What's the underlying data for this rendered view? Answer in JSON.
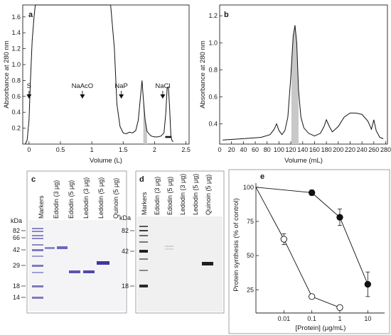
{
  "panels": {
    "a": {
      "label": "a",
      "ylabel": "Absorbance at 280 nm",
      "xlabel": "Volume (L)",
      "annotations": [
        {
          "text": "S",
          "x": 0.0
        },
        {
          "text": "NaAcO",
          "x": 0.85
        },
        {
          "text": "NaP",
          "x": 1.47
        },
        {
          "text": "NaCl",
          "x": 2.13
        }
      ]
    },
    "b": {
      "label": "b",
      "ylabel": "Absorbance at 280 nm",
      "xlabel": "Volume (mL)"
    },
    "c": {
      "label": "c",
      "unit": "kDa",
      "lanes": [
        "Markers",
        "Edodin (3 μg)",
        "Edodin (5 μg)",
        "Ledodin (3 μg)",
        "Ledodin (5 μg)",
        "Quinoin (5 μg)"
      ],
      "mw_labels": [
        "82",
        "66",
        "42",
        "29",
        "18",
        "14"
      ],
      "mw_values": [
        82,
        66,
        42,
        29,
        18,
        14
      ]
    },
    "d": {
      "label": "d",
      "unit": "kDa",
      "lanes": [
        "Markers",
        "Edodin (3 μg)",
        "Edodin (5 μg)",
        "Ledodin (3 μg)",
        "Ledodin (5 μg)",
        "Quinoin (5 μg)"
      ],
      "mw_labels": [
        "82",
        "42",
        "18"
      ],
      "mw_values": [
        82,
        42,
        18
      ]
    },
    "e": {
      "label": "e",
      "ylabel": "Protein synthesis (% of control)",
      "xlabel": "[Protein] (μg/mL)"
    }
  },
  "chart_data": [
    {
      "id": "a",
      "type": "line",
      "xlabel": "Volume (L)",
      "ylabel": "Absorbance at 280 nm",
      "xlim": [
        -0.1,
        2.55
      ],
      "ylim": [
        0,
        1.75
      ],
      "xticks": [
        0,
        0.5,
        1,
        1.5,
        2,
        2.5
      ],
      "xtick_labels": [
        "0",
        "0.5",
        "1",
        "1.5",
        "2",
        "2.5"
      ],
      "yticks": [
        0.2,
        0.4,
        0.6,
        0.8,
        1.0,
        1.2,
        1.4,
        1.6
      ],
      "ytick_labels": [
        "0.2",
        "0.4",
        "0.6",
        "0.8",
        "1.0",
        "1.2",
        "1.4",
        "1.6"
      ],
      "x": [
        -0.06,
        -0.03,
        0.0,
        0.02,
        0.05,
        0.08,
        0.1,
        0.12,
        0.15,
        0.2,
        0.3,
        0.5,
        0.7,
        0.9,
        1.1,
        1.2,
        1.3,
        1.36,
        1.4,
        1.45,
        1.5,
        1.55,
        1.6,
        1.65,
        1.7,
        1.74,
        1.77,
        1.8,
        1.82,
        1.85,
        1.88,
        1.92,
        1.95,
        2.0,
        2.05,
        2.1,
        2.15,
        2.18,
        2.2,
        2.22,
        2.24,
        2.26,
        2.28,
        2.3
      ],
      "y": [
        0.0,
        0.05,
        0.3,
        0.75,
        1.3,
        1.6,
        1.75,
        1.75,
        1.75,
        1.75,
        1.75,
        1.75,
        1.75,
        1.75,
        1.75,
        1.75,
        1.75,
        1.2,
        0.5,
        0.22,
        0.14,
        0.13,
        0.15,
        0.14,
        0.17,
        0.3,
        0.55,
        0.8,
        0.58,
        0.3,
        0.16,
        0.12,
        0.1,
        0.09,
        0.09,
        0.1,
        0.14,
        0.4,
        0.7,
        0.72,
        0.45,
        0.1,
        0.04,
        0.03
      ],
      "shaded_x": [
        1.82,
        1.88
      ],
      "bar_x": [
        2.17,
        2.27
      ]
    },
    {
      "id": "b",
      "type": "line",
      "xlabel": "Volume (mL)",
      "ylabel": "Absorbance at 280 nm",
      "xlim": [
        0,
        283
      ],
      "ylim": [
        0.25,
        1.28
      ],
      "xticks": [
        0,
        20,
        40,
        60,
        80,
        100,
        120,
        140,
        160,
        180,
        200,
        220,
        240,
        260,
        280
      ],
      "xtick_labels": [
        "0",
        "20",
        "40",
        "60",
        "80",
        "100",
        "120",
        "140",
        "160",
        "180",
        "200",
        "220",
        "240",
        "260",
        "280"
      ],
      "yticks": [
        0.4,
        0.6,
        0.8,
        1.0,
        1.2
      ],
      "ytick_labels": [
        "0.4",
        "0.6",
        "0.8",
        "1.0",
        "1.2"
      ],
      "x": [
        5,
        40,
        70,
        85,
        92,
        96,
        100,
        105,
        110,
        115,
        120,
        124,
        127,
        130,
        133,
        137,
        142,
        150,
        160,
        170,
        176,
        180,
        185,
        190,
        200,
        210,
        220,
        230,
        240,
        250,
        256,
        260,
        264,
        270,
        276
      ],
      "y": [
        0.28,
        0.29,
        0.3,
        0.32,
        0.36,
        0.4,
        0.35,
        0.32,
        0.35,
        0.45,
        0.75,
        1.05,
        1.13,
        1.0,
        0.65,
        0.45,
        0.37,
        0.33,
        0.31,
        0.33,
        0.38,
        0.43,
        0.38,
        0.34,
        0.38,
        0.45,
        0.48,
        0.48,
        0.47,
        0.42,
        0.36,
        0.43,
        0.35,
        0.3,
        0.29
      ],
      "shaded_x": [
        121,
        133
      ]
    },
    {
      "id": "e",
      "type": "line",
      "xlabel": "[Protein] (μg/mL)",
      "ylabel": "Protein synthesis (% of control)",
      "xscale": "log",
      "xlim": [
        0.001,
        40
      ],
      "ylim": [
        8,
        103
      ],
      "xticks": [
        0.01,
        0.1,
        1,
        10
      ],
      "xtick_labels": [
        "0.01",
        "0.1",
        "1",
        "10"
      ],
      "yticks": [
        25,
        50,
        75,
        100
      ],
      "ytick_labels": [
        "25",
        "50",
        "75",
        "100"
      ],
      "series": [
        {
          "marker": "filled",
          "x": [
            0.001,
            0.1,
            1,
            10
          ],
          "y": [
            100,
            96,
            78,
            29
          ],
          "err": [
            0,
            2,
            6,
            9
          ]
        },
        {
          "marker": "open",
          "x": [
            0.001,
            0.01,
            0.1,
            1
          ],
          "y": [
            100,
            62,
            20,
            12
          ],
          "err": [
            0,
            4,
            0,
            0
          ]
        }
      ]
    }
  ]
}
